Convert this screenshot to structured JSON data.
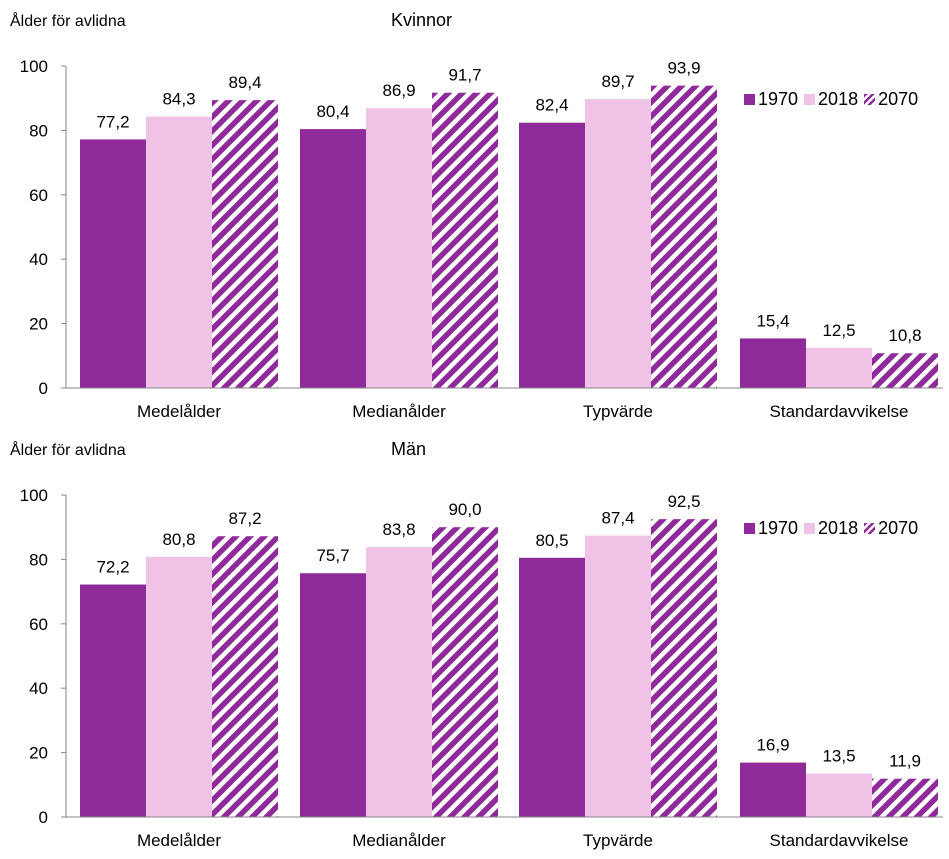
{
  "colors": {
    "s1970": "#8e2a9a",
    "s2018": "#f0c3e6",
    "s2070_stripe": "#8e2a9a",
    "axis": "#868686"
  },
  "legend": [
    "1970",
    "2018",
    "2070"
  ],
  "chart_data": [
    {
      "type": "bar",
      "title": "Kvinnor",
      "ylabel": "Ålder för avlidna",
      "categories": [
        "Medelålder",
        "Medianålder",
        "Typvärde",
        "Standardavvikelse"
      ],
      "ylim": [
        0,
        100
      ],
      "yticks": [
        "0",
        "20",
        "40",
        "60",
        "80",
        "100"
      ],
      "legend_position": "top-right",
      "series": [
        {
          "name": "1970",
          "values": [
            77.2,
            80.4,
            82.4,
            15.4
          ],
          "labels": [
            "77,2",
            "80,4",
            "82,4",
            "15,4"
          ]
        },
        {
          "name": "2018",
          "values": [
            84.3,
            86.9,
            89.7,
            12.5
          ],
          "labels": [
            "84,3",
            "86,9",
            "89,7",
            "12,5"
          ]
        },
        {
          "name": "2070",
          "values": [
            89.4,
            91.7,
            93.9,
            10.8
          ],
          "labels": [
            "89,4",
            "91,7",
            "93,9",
            "10,8"
          ]
        }
      ]
    },
    {
      "type": "bar",
      "title": "Män",
      "ylabel": "Ålder för avlidna",
      "categories": [
        "Medelålder",
        "Medianålder",
        "Typvärde",
        "Standardavvikelse"
      ],
      "ylim": [
        0,
        100
      ],
      "yticks": [
        "0",
        "20",
        "40",
        "60",
        "80",
        "100"
      ],
      "legend_position": "top-right",
      "series": [
        {
          "name": "1970",
          "values": [
            72.2,
            75.7,
            80.5,
            16.9
          ],
          "labels": [
            "72,2",
            "75,7",
            "80,5",
            "16,9"
          ]
        },
        {
          "name": "2018",
          "values": [
            80.8,
            83.8,
            87.4,
            13.5
          ],
          "labels": [
            "80,8",
            "83,8",
            "87,4",
            "13,5"
          ]
        },
        {
          "name": "2070",
          "values": [
            87.2,
            90.0,
            92.5,
            11.9
          ],
          "labels": [
            "87,2",
            "90,0",
            "92,5",
            "11,9"
          ]
        }
      ]
    }
  ]
}
